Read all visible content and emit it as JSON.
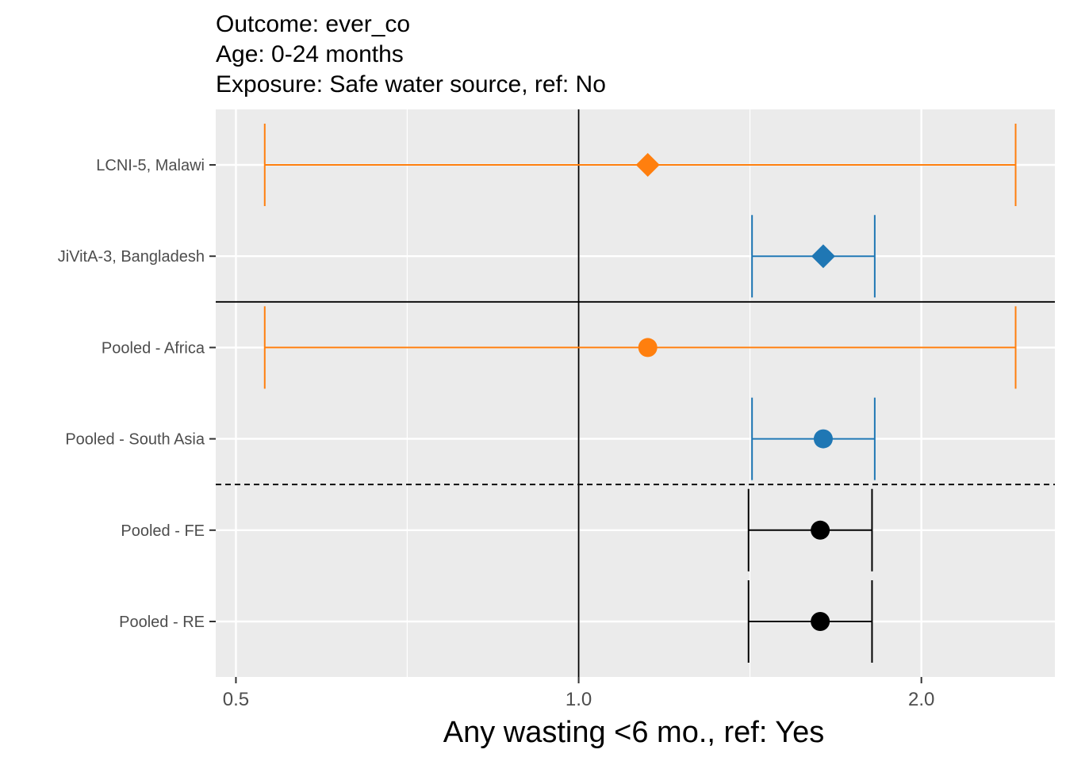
{
  "title_lines": [
    "Outcome: ever_co",
    "Age: 0-24 months",
    "Exposure: Safe water source, ref: No"
  ],
  "chart_data": {
    "type": "forest",
    "x_scale": "log",
    "xlabel": "Any wasting  <6 mo., ref: Yes",
    "ylabel": "",
    "xlim": [
      0.48,
      2.62
    ],
    "x_ticks": [
      0.5,
      1.0,
      2.0
    ],
    "x_tick_labels": [
      "0.5",
      "1.0",
      "2.0"
    ],
    "x_minor_ticks": [
      0.707,
      1.414
    ],
    "reference_line": 1.0,
    "grid": true,
    "colors": {
      "africa": "#FF7F0E",
      "south_asia": "#1F77B4",
      "pooled": "#000000",
      "panel_bg": "#EBEBEB"
    },
    "rows": [
      {
        "label": "LCNI-5, Malawi",
        "estimate": 1.15,
        "lower": 0.53,
        "upper": 2.42,
        "marker": "diamond",
        "group": "africa"
      },
      {
        "label": "JiVitA-3, Bangladesh",
        "estimate": 1.64,
        "lower": 1.42,
        "upper": 1.82,
        "marker": "diamond",
        "group": "south_asia"
      },
      {
        "label": "Pooled - Africa",
        "estimate": 1.15,
        "lower": 0.53,
        "upper": 2.42,
        "marker": "circle",
        "group": "africa"
      },
      {
        "label": "Pooled - South Asia",
        "estimate": 1.64,
        "lower": 1.42,
        "upper": 1.82,
        "marker": "circle",
        "group": "south_asia"
      },
      {
        "label": "Pooled - FE",
        "estimate": 1.63,
        "lower": 1.41,
        "upper": 1.81,
        "marker": "circle",
        "group": "pooled"
      },
      {
        "label": "Pooled - RE",
        "estimate": 1.63,
        "lower": 1.41,
        "upper": 1.81,
        "marker": "circle",
        "group": "pooled"
      }
    ],
    "separators": [
      {
        "between": [
          "JiVitA-3, Bangladesh",
          "Pooled - Africa"
        ],
        "style": "solid"
      },
      {
        "between": [
          "Pooled - South Asia",
          "Pooled - FE"
        ],
        "style": "dashed"
      }
    ]
  }
}
